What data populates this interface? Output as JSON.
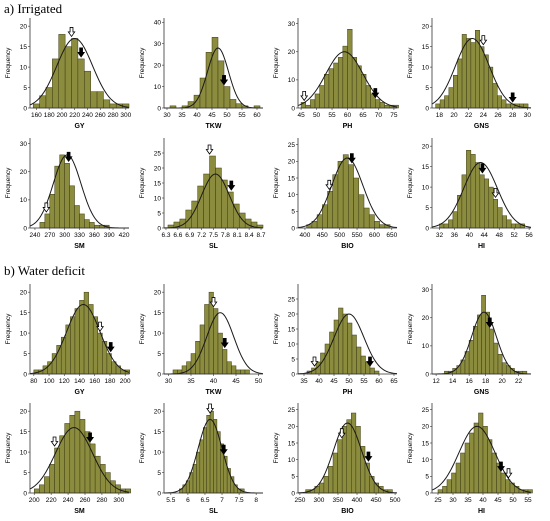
{
  "sections": [
    {
      "title": "a) Irrigated"
    },
    {
      "title": "b) Water deficit"
    }
  ],
  "colors": {
    "bar_fill": "#8c8c3e",
    "bar_stroke": "#3c3c14",
    "curve": "#1a1a1a",
    "axis": "#333333"
  },
  "chart_data": [
    {
      "type": "bar",
      "section": 0,
      "xlabel": "GY",
      "ylabel": "Frequency",
      "ticks": [
        160,
        180,
        200,
        220,
        240,
        260,
        280,
        300
      ],
      "xlim": [
        150,
        305
      ],
      "ylim": [
        0,
        22
      ],
      "yticks": [
        0,
        5,
        10,
        15,
        20
      ],
      "bin_start": 155,
      "bin_width": 10,
      "values": [
        1,
        3,
        5,
        12,
        18,
        15,
        17,
        12,
        9,
        4,
        4,
        2,
        1,
        1,
        1
      ],
      "normal": {
        "mean": 220,
        "sd": 28,
        "peak": 17
      },
      "markers": [
        {
          "type": "open",
          "x": 215
        },
        {
          "type": "filled",
          "x": 230
        }
      ]
    },
    {
      "type": "bar",
      "section": 0,
      "xlabel": "TKW",
      "ylabel": "Frequency",
      "ticks": [
        30,
        35,
        40,
        45,
        50,
        55,
        60
      ],
      "xlim": [
        29,
        62
      ],
      "ylim": [
        0,
        42
      ],
      "yticks": [
        0,
        10,
        20,
        30,
        40
      ],
      "bin_start": 31,
      "bin_width": 2,
      "values": [
        1,
        0,
        1,
        3,
        6,
        14,
        26,
        33,
        22,
        10,
        4,
        2,
        1,
        0,
        1
      ],
      "normal": {
        "mean": 47,
        "sd": 3.5,
        "peak": 28
      },
      "markers": [
        {
          "type": "open",
          "x": 49
        },
        {
          "type": "filled",
          "x": 49
        }
      ]
    },
    {
      "type": "bar",
      "section": 0,
      "xlabel": "PH",
      "ylabel": "Frequency",
      "ticks": [
        45,
        50,
        55,
        60,
        65,
        70,
        75
      ],
      "xlim": [
        44,
        76
      ],
      "ylim": [
        0,
        32
      ],
      "yticks": [
        0,
        10,
        20,
        30
      ],
      "bin_start": 45,
      "bin_width": 1.5,
      "values": [
        2,
        1,
        3,
        5,
        8,
        12,
        14,
        16,
        18,
        22,
        28,
        18,
        15,
        12,
        8,
        5,
        3,
        2,
        1,
        1,
        1
      ],
      "normal": {
        "mean": 59,
        "sd": 6,
        "peak": 20
      },
      "markers": [
        {
          "type": "open",
          "x": 46
        },
        {
          "type": "filled",
          "x": 69
        }
      ]
    },
    {
      "type": "bar",
      "section": 0,
      "xlabel": "GNS",
      "ylabel": "Frequency",
      "ticks": [
        18,
        20,
        22,
        24,
        26,
        28,
        30
      ],
      "xlim": [
        17,
        30.5
      ],
      "ylim": [
        0,
        22
      ],
      "yticks": [
        0,
        5,
        10,
        15,
        20
      ],
      "bin_start": 17.5,
      "bin_width": 0.6,
      "values": [
        1,
        2,
        3,
        5,
        8,
        12,
        18,
        17,
        16,
        19,
        15,
        13,
        10,
        6,
        3,
        2,
        1,
        1,
        1,
        1,
        1
      ],
      "normal": {
        "mean": 22.5,
        "sd": 2.3,
        "peak": 17
      },
      "markers": [
        {
          "type": "open",
          "x": 24
        },
        {
          "type": "filled",
          "x": 28
        }
      ]
    },
    {
      "type": "bar",
      "section": 0,
      "xlabel": "SM",
      "ylabel": "Frequency",
      "ticks": [
        240,
        270,
        300,
        330,
        360,
        390,
        420
      ],
      "xlim": [
        230,
        430
      ],
      "ylim": [
        0,
        32
      ],
      "yticks": [
        0,
        10,
        20,
        30
      ],
      "bin_start": 250,
      "bin_width": 10,
      "values": [
        2,
        5,
        12,
        22,
        26,
        23,
        15,
        8,
        5,
        3,
        2,
        1,
        1,
        1
      ],
      "normal": {
        "mean": 305,
        "sd": 28,
        "peak": 26
      },
      "markers": [
        {
          "type": "open",
          "x": 263
        },
        {
          "type": "filled",
          "x": 308
        }
      ]
    },
    {
      "type": "bar",
      "section": 0,
      "xlabel": "SL",
      "ylabel": "Frequency",
      "ticks": [
        6.3,
        6.6,
        6.9,
        7.2,
        7.5,
        7.8,
        8.1,
        8.4,
        8.7
      ],
      "xlim": [
        6.25,
        8.75
      ],
      "ylim": [
        0,
        30
      ],
      "yticks": [
        0,
        5,
        10,
        15,
        20,
        25
      ],
      "bin_start": 6.35,
      "bin_width": 0.15,
      "values": [
        1,
        2,
        3,
        6,
        9,
        14,
        18,
        24,
        20,
        16,
        12,
        8,
        5,
        3,
        2,
        1
      ],
      "normal": {
        "mean": 7.55,
        "sd": 0.35,
        "peak": 18
      },
      "markers": [
        {
          "type": "open",
          "x": 7.4
        },
        {
          "type": "filled",
          "x": 7.95
        }
      ]
    },
    {
      "type": "bar",
      "section": 0,
      "xlabel": "BIO",
      "ylabel": "Frequency",
      "ticks": [
        400,
        450,
        500,
        550,
        600,
        650
      ],
      "xlim": [
        380,
        665
      ],
      "ylim": [
        0,
        27
      ],
      "yticks": [
        0,
        5,
        10,
        15,
        20,
        25
      ],
      "bin_start": 405,
      "bin_width": 15,
      "values": [
        1,
        2,
        4,
        7,
        11,
        16,
        20,
        22,
        19,
        15,
        10,
        6,
        4,
        2,
        1,
        1
      ],
      "normal": {
        "mean": 522,
        "sd": 45,
        "peak": 21
      },
      "markers": [
        {
          "type": "open",
          "x": 470
        },
        {
          "type": "filled",
          "x": 535
        }
      ]
    },
    {
      "type": "bar",
      "section": 0,
      "xlabel": "HI",
      "ylabel": "Frequency",
      "ticks": [
        32,
        36,
        40,
        44,
        48,
        52,
        56
      ],
      "xlim": [
        30,
        56.5
      ],
      "ylim": [
        0,
        22
      ],
      "yticks": [
        0,
        5,
        10,
        15,
        20
      ],
      "bin_start": 32,
      "bin_width": 1.2,
      "values": [
        1,
        1,
        2,
        4,
        8,
        13,
        19,
        18,
        16,
        13,
        12,
        10,
        7,
        5,
        3,
        2,
        1,
        1,
        1
      ],
      "normal": {
        "mean": 43,
        "sd": 4.5,
        "peak": 16
      },
      "markers": [
        {
          "type": "filled",
          "x": 43.5
        },
        {
          "type": "open",
          "x": 47
        }
      ]
    },
    {
      "type": "bar",
      "section": 1,
      "xlabel": "GY",
      "ylabel": "Frequency",
      "ticks": [
        80,
        100,
        120,
        140,
        160,
        180,
        200
      ],
      "xlim": [
        75,
        205
      ],
      "ylim": [
        0,
        22
      ],
      "yticks": [
        0,
        5,
        10,
        15,
        20
      ],
      "bin_start": 80,
      "bin_width": 6,
      "values": [
        1,
        1,
        2,
        3,
        5,
        7,
        9,
        12,
        14,
        16,
        18,
        20,
        17,
        14,
        10,
        8,
        5,
        3,
        2,
        1,
        1
      ],
      "normal": {
        "mean": 145,
        "sd": 22,
        "peak": 17
      },
      "markers": [
        {
          "type": "open",
          "x": 167
        },
        {
          "type": "filled",
          "x": 181
        }
      ]
    },
    {
      "type": "bar",
      "section": 1,
      "xlabel": "TKW",
      "ylabel": "Frequency",
      "ticks": [
        30,
        35,
        40,
        45,
        50
      ],
      "xlim": [
        29,
        51
      ],
      "ylim": [
        0,
        22
      ],
      "yticks": [
        0,
        5,
        10,
        15,
        20
      ],
      "bin_start": 31,
      "bin_width": 1,
      "values": [
        1,
        1,
        2,
        3,
        5,
        8,
        12,
        17,
        20,
        16,
        10,
        6,
        3,
        2,
        1,
        1,
        1
      ],
      "normal": {
        "mean": 41.5,
        "sd": 3,
        "peak": 15
      },
      "markers": [
        {
          "type": "open",
          "x": 40
        },
        {
          "type": "filled",
          "x": 42.5
        }
      ]
    },
    {
      "type": "bar",
      "section": 1,
      "xlabel": "PH",
      "ylabel": "Frequency",
      "ticks": [
        35,
        40,
        45,
        50,
        55,
        60,
        65
      ],
      "xlim": [
        33,
        66
      ],
      "ylim": [
        0,
        30
      ],
      "yticks": [
        0,
        5,
        10,
        15,
        20,
        25
      ],
      "bin_start": 36,
      "bin_width": 1.5,
      "values": [
        1,
        2,
        4,
        7,
        10,
        14,
        18,
        22,
        20,
        17,
        13,
        9,
        6,
        4,
        2,
        1
      ],
      "normal": {
        "mean": 50,
        "sd": 5,
        "peak": 20
      },
      "markers": [
        {
          "type": "open",
          "x": 38.5
        },
        {
          "type": "filled",
          "x": 57
        }
      ]
    },
    {
      "type": "bar",
      "section": 1,
      "xlabel": "GNS",
      "ylabel": "Frequency",
      "ticks": [
        12,
        14,
        16,
        18,
        20,
        22
      ],
      "xlim": [
        11.5,
        23.5
      ],
      "ylim": [
        0,
        32
      ],
      "yticks": [
        0,
        10,
        20,
        30
      ],
      "bin_start": 13,
      "bin_width": 0.5,
      "values": [
        1,
        1,
        2,
        3,
        5,
        8,
        12,
        17,
        21,
        28,
        22,
        16,
        11,
        7,
        4,
        3,
        2,
        1,
        1,
        1
      ],
      "normal": {
        "mean": 17.8,
        "sd": 1.5,
        "peak": 22
      },
      "markers": [
        {
          "type": "open",
          "x": 18.5
        },
        {
          "type": "filled",
          "x": 18.5
        }
      ]
    },
    {
      "type": "bar",
      "section": 1,
      "xlabel": "SM",
      "ylabel": "Frequency",
      "ticks": [
        200,
        220,
        240,
        260,
        280,
        300
      ],
      "xlim": [
        195,
        312
      ],
      "ylim": [
        0,
        22
      ],
      "yticks": [
        0,
        5,
        10,
        15,
        20
      ],
      "bin_start": 200,
      "bin_width": 6,
      "values": [
        1,
        2,
        4,
        7,
        11,
        14,
        17,
        19,
        20,
        18,
        15,
        12,
        9,
        7,
        5,
        3,
        2,
        1,
        1
      ],
      "normal": {
        "mean": 247,
        "sd": 22,
        "peak": 16
      },
      "markers": [
        {
          "type": "open",
          "x": 224
        },
        {
          "type": "filled",
          "x": 266
        }
      ]
    },
    {
      "type": "bar",
      "section": 1,
      "xlabel": "SL",
      "ylabel": "Frequency",
      "ticks": [
        5.5,
        6.0,
        6.5,
        7.0,
        7.5,
        8.0
      ],
      "xlim": [
        5.3,
        8.2
      ],
      "ylim": [
        0,
        22
      ],
      "yticks": [
        0,
        5,
        10,
        15,
        20
      ],
      "bin_start": 5.75,
      "bin_width": 0.1,
      "values": [
        1,
        2,
        3,
        5,
        7,
        10,
        13,
        16,
        19,
        20,
        18,
        15,
        12,
        9,
        6,
        4,
        2,
        1,
        1
      ],
      "normal": {
        "mean": 6.65,
        "sd": 0.35,
        "peak": 18
      },
      "markers": [
        {
          "type": "open",
          "x": 6.65
        },
        {
          "type": "filled",
          "x": 7.05
        }
      ]
    },
    {
      "type": "bar",
      "section": 1,
      "xlabel": "BIO",
      "ylabel": "Frequency",
      "ticks": [
        250,
        300,
        350,
        400,
        450,
        500
      ],
      "xlim": [
        245,
        505
      ],
      "ylim": [
        0,
        27
      ],
      "yticks": [
        0,
        5,
        10,
        15,
        20,
        25
      ],
      "bin_start": 265,
      "bin_width": 12,
      "values": [
        1,
        1,
        2,
        3,
        5,
        8,
        12,
        16,
        20,
        22,
        24,
        20,
        14,
        9,
        5,
        3,
        2,
        1,
        1
      ],
      "normal": {
        "mean": 375,
        "sd": 37,
        "peak": 21
      },
      "markers": [
        {
          "type": "open",
          "x": 360
        },
        {
          "type": "filled",
          "x": 430
        }
      ]
    },
    {
      "type": "bar",
      "section": 1,
      "xlabel": "HI",
      "ylabel": "Frequency",
      "ticks": [
        25,
        30,
        35,
        40,
        45,
        50,
        55
      ],
      "xlim": [
        23,
        56
      ],
      "ylim": [
        0,
        27
      ],
      "yticks": [
        0,
        5,
        10,
        15,
        20,
        25
      ],
      "bin_start": 25,
      "bin_width": 1.5,
      "values": [
        1,
        2,
        4,
        6,
        9,
        12,
        15,
        18,
        21,
        24,
        20,
        16,
        12,
        9,
        6,
        4,
        3,
        2,
        1,
        1,
        1
      ],
      "normal": {
        "mean": 38,
        "sd": 6,
        "peak": 20
      },
      "markers": [
        {
          "type": "filled",
          "x": 46
        },
        {
          "type": "open",
          "x": 48.5
        }
      ]
    }
  ]
}
